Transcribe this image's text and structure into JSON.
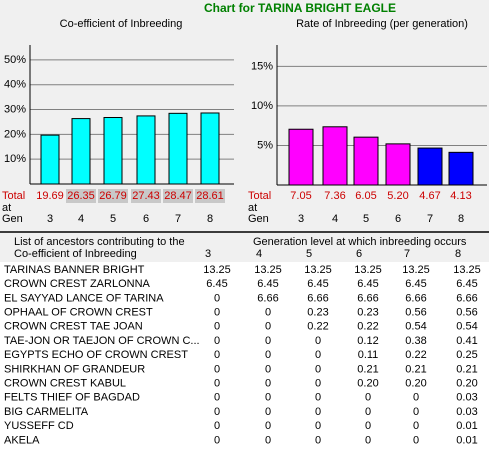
{
  "header": {
    "title": "Chart for TARINA BRIGHT EAGLE"
  },
  "chart_data": [
    {
      "type": "bar",
      "title": "Co-efficient of Inbreeding",
      "categories": [
        "3",
        "4",
        "5",
        "6",
        "7",
        "8"
      ],
      "values": [
        19.69,
        26.35,
        26.79,
        27.43,
        28.47,
        28.61
      ],
      "color": "#00ffff",
      "ylim": [
        0,
        56
      ],
      "yticks": [
        {
          "value": 10,
          "label": "10%"
        },
        {
          "value": 20,
          "label": "20%"
        },
        {
          "value": 30,
          "label": "30%"
        },
        {
          "value": 40,
          "label": "40%"
        },
        {
          "value": 50,
          "label": "50%"
        }
      ],
      "grid": true,
      "row_labels": [
        "Total",
        "at",
        "Gen"
      ]
    },
    {
      "type": "bar",
      "title": "Rate of Inbreeding (per generation)",
      "categories": [
        "3",
        "4",
        "5",
        "6",
        "7",
        "8"
      ],
      "values": [
        7.05,
        7.36,
        6.05,
        5.2,
        4.67,
        4.13
      ],
      "value_labels": [
        "7.05",
        "7.36",
        "6.05",
        "5.20",
        "4.67",
        "4.13"
      ],
      "colors": [
        "#ff00ff",
        "#ff00ff",
        "#ff00ff",
        "#ff00ff",
        "#0000ff",
        "#0000ff"
      ],
      "ylim": [
        0,
        17.7
      ],
      "yticks": [
        {
          "value": 5,
          "label": "5%"
        },
        {
          "value": 10,
          "label": "10%"
        },
        {
          "value": 15,
          "label": "15%"
        }
      ],
      "grid": true,
      "row_labels": [
        "Total",
        "at",
        "Gen"
      ]
    }
  ],
  "table": {
    "list_header": [
      "List of ancestors contributing to the",
      "Co-efficient of Inbreeding"
    ],
    "generation_header": "Generation level at which inbreeding occurs",
    "columns": [
      "3",
      "4",
      "5",
      "6",
      "7",
      "8"
    ],
    "rows": [
      [
        "TARINAS BANNER BRIGHT",
        "13.25",
        "13.25",
        "13.25",
        "13.25",
        "13.25",
        "13.25"
      ],
      [
        "CROWN CREST ZARLONNA",
        "6.45",
        "6.45",
        "6.45",
        "6.45",
        "6.45",
        "6.45"
      ],
      [
        "EL SAYYAD LANCE OF TARINA",
        "0",
        "6.66",
        "6.66",
        "6.66",
        "6.66",
        "6.66"
      ],
      [
        "OPHAAL OF CROWN CREST",
        "0",
        "0",
        "0.23",
        "0.23",
        "0.56",
        "0.56"
      ],
      [
        "CROWN CREST TAE JOAN",
        "0",
        "0",
        "0.22",
        "0.22",
        "0.54",
        "0.54"
      ],
      [
        "TAE-JON OR TAEJON OF CROWN C...",
        "0",
        "0",
        "0",
        "0.12",
        "0.38",
        "0.41"
      ],
      [
        "EGYPTS ECHO OF CROWN CREST",
        "0",
        "0",
        "0",
        "0.11",
        "0.22",
        "0.25"
      ],
      [
        "SHIRKHAN OF GRANDEUR",
        "0",
        "0",
        "0",
        "0.21",
        "0.21",
        "0.21"
      ],
      [
        "CROWN CREST KABUL",
        "0",
        "0",
        "0",
        "0.20",
        "0.20",
        "0.20"
      ],
      [
        "FELTS THIEF OF BAGDAD",
        "0",
        "0",
        "0",
        "0",
        "0",
        "0.03"
      ],
      [
        "BIG CARMELITA",
        "0",
        "0",
        "0",
        "0",
        "0",
        "0.03"
      ],
      [
        "YUSSEFF CD",
        "0",
        "0",
        "0",
        "0",
        "0",
        "0.01"
      ],
      [
        "AKELA",
        "0",
        "0",
        "0",
        "0",
        "0",
        "0.01"
      ]
    ]
  }
}
